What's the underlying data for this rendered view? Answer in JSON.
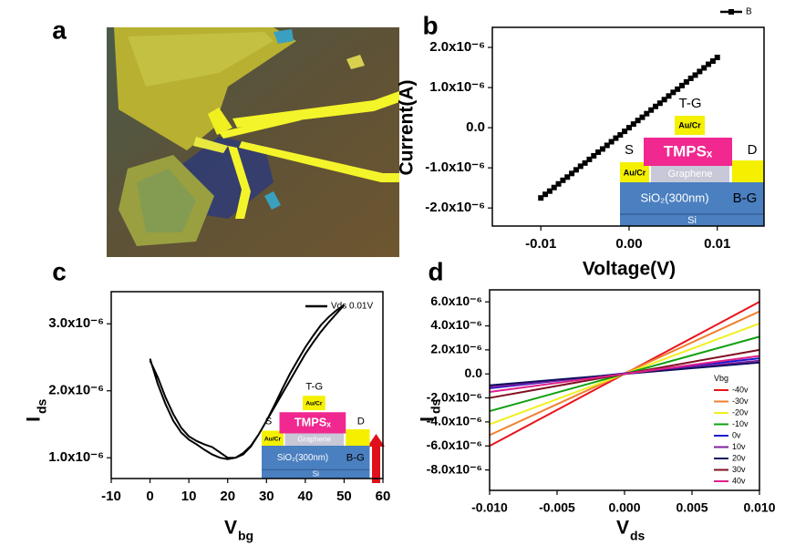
{
  "chart_data": [
    {
      "type": "image",
      "panel": "a"
    },
    {
      "type": "line",
      "panel": "b",
      "xlabel": "Voltage(V)",
      "ylabel": "Current(A)",
      "marker": "square",
      "legend": "top-outside",
      "x": [
        -0.01,
        -0.0095,
        -0.009,
        -0.0085,
        -0.008,
        -0.0075,
        -0.007,
        -0.0065,
        -0.006,
        -0.0055,
        -0.005,
        -0.0045,
        -0.004,
        -0.0035,
        -0.003,
        -0.0025,
        -0.002,
        -0.0015,
        -0.001,
        -0.0005,
        0,
        0.0005,
        0.001,
        0.0015,
        0.002,
        0.0025,
        0.003,
        0.0035,
        0.004,
        0.0045,
        0.005,
        0.0055,
        0.006,
        0.0065,
        0.007,
        0.0075,
        0.008,
        0.0085,
        0.009,
        0.0095,
        0.01
      ],
      "series": [
        {
          "name": "B",
          "color": "#000000",
          "values": [
            -1.75e-06,
            -1.66e-06,
            -1.58e-06,
            -1.49e-06,
            -1.4e-06,
            -1.31e-06,
            -1.23e-06,
            -1.14e-06,
            -1.05e-06,
            -9.6e-07,
            -8.8e-07,
            -7.9e-07,
            -7e-07,
            -6.1e-07,
            -5.3e-07,
            -4.4e-07,
            -3.5e-07,
            -2.6e-07,
            -1.8e-07,
            -9e-08,
            0,
            9e-08,
            1.8e-07,
            2.6e-07,
            3.5e-07,
            4.4e-07,
            5.3e-07,
            6.1e-07,
            7e-07,
            7.9e-07,
            8.8e-07,
            9.6e-07,
            1.05e-06,
            1.14e-06,
            1.23e-06,
            1.31e-06,
            1.4e-06,
            1.49e-06,
            1.58e-06,
            1.66e-06,
            1.75e-06
          ]
        }
      ],
      "xlim": [
        -0.0155,
        0.0153
      ],
      "ylim": [
        -2.45e-06,
        2.5e-06
      ],
      "xticks": [
        -0.01,
        {
          "value": 0,
          "label": "0.00"
        },
        0.01
      ],
      "yticks": [
        {
          "value": 2e-06,
          "label": "2.0x10⁻⁶"
        },
        {
          "value": 1e-06,
          "label": "1.0x10⁻⁶"
        },
        {
          "value": 0,
          "label": "0.0"
        },
        {
          "value": -1e-06,
          "label": "-1.0x10⁻⁶"
        },
        {
          "value": -2e-06,
          "label": "-2.0x10⁻⁶"
        }
      ],
      "inset": {
        "top_gate": "T-G",
        "gate_metal": "Au/Cr",
        "channel": "TMPSₓ",
        "source": "S",
        "drain": "D",
        "contact": "Au/Cr",
        "graphene": "Graphene",
        "oxide": "SiO₂(300nm)",
        "back_gate": "B-G",
        "substrate": "Si"
      }
    },
    {
      "type": "line",
      "panel": "c",
      "xlabel": "V",
      "xlabel_sub": "bg",
      "ylabel": "I",
      "ylabel_sub": "ds",
      "legend": "top-right",
      "x": [
        0,
        2,
        4,
        6,
        8,
        10,
        12,
        14,
        16,
        18,
        20,
        22,
        24,
        26,
        28,
        30,
        32,
        34,
        36,
        38,
        40,
        42,
        44,
        46,
        48,
        50,
        48,
        46,
        44,
        42,
        40,
        38,
        36,
        34,
        32,
        30,
        28,
        26,
        24,
        22,
        20,
        18,
        16,
        14,
        12,
        10,
        8,
        6,
        4,
        2,
        0
      ],
      "series": [
        {
          "name": "Vds 0.01V",
          "color": "#000000",
          "values": [
            2.48e-06,
            2.1e-06,
            1.8e-06,
            1.55e-06,
            1.38e-06,
            1.27e-06,
            1.2e-06,
            1.12e-06,
            1.05e-06,
            1e-06,
            9.8e-07,
            1e-06,
            1.07e-06,
            1.18e-06,
            1.35e-06,
            1.55e-06,
            1.75e-06,
            1.95e-06,
            2.15e-06,
            2.35e-06,
            2.55e-06,
            2.72e-06,
            2.88e-06,
            3.02e-06,
            3.15e-06,
            3.28e-06,
            3.2e-06,
            3.1e-06,
            2.98e-06,
            2.82e-06,
            2.65e-06,
            2.45e-06,
            2.25e-06,
            2.02e-06,
            1.78e-06,
            1.55e-06,
            1.35e-06,
            1.17e-06,
            1.05e-06,
            1e-06,
            1e-06,
            1.08e-06,
            1.16e-06,
            1.2e-06,
            1.25e-06,
            1.32e-06,
            1.45e-06,
            1.65e-06,
            1.9e-06,
            2.2e-06,
            2.45e-06
          ]
        }
      ],
      "xlim": [
        -10,
        60
      ],
      "ylim": [
        6.9e-07,
        3.48e-06
      ],
      "xticks": [
        -10,
        0,
        10,
        20,
        30,
        40,
        50,
        60
      ],
      "yticks": [
        {
          "value": 3e-06,
          "label": "3.0x10⁻⁶"
        },
        {
          "value": 2e-06,
          "label": "2.0x10⁻⁶"
        },
        {
          "value": 1e-06,
          "label": "1.0x10⁻⁶"
        }
      ],
      "inset": {
        "top_gate": "T-G",
        "gate_metal": "Au/Cr",
        "channel": "TMPSₓ",
        "source": "S",
        "drain": "D",
        "contact": "Au/Cr",
        "graphene": "Graphene",
        "oxide": "SiO₂(300nm)",
        "back_gate": "B-G",
        "substrate": "Si"
      }
    },
    {
      "type": "line",
      "panel": "d",
      "xlabel": "V",
      "xlabel_sub": "ds",
      "ylabel": "I",
      "ylabel_sub": "ds",
      "legend": "lower-right",
      "legend_title": "Vbg",
      "x": [
        -0.01,
        0.01
      ],
      "series": [
        {
          "name": "-40v",
          "color": "#e8141c",
          "values": [
            -6e-06,
            6e-06
          ]
        },
        {
          "name": "-30v",
          "color": "#f08030",
          "values": [
            -5.1e-06,
            5.2e-06
          ]
        },
        {
          "name": "-20v",
          "color": "#f0f020",
          "values": [
            -4.2e-06,
            4.2e-06
          ]
        },
        {
          "name": "-10v",
          "color": "#10a010",
          "values": [
            -3.1e-06,
            3.1e-06
          ]
        },
        {
          "name": "0v",
          "color": "#1a1ad0",
          "values": [
            -1.2e-06,
            1.3e-06
          ]
        },
        {
          "name": "10v",
          "color": "#8020a0",
          "values": [
            -1.1e-06,
            1.1e-06
          ]
        },
        {
          "name": "20v",
          "color": "#101060",
          "values": [
            -9.5e-07,
            9.5e-07
          ]
        },
        {
          "name": "30v",
          "color": "#801020",
          "values": [
            -2e-06,
            2e-06
          ]
        },
        {
          "name": "40v",
          "color": "#e0208a",
          "values": [
            -1.5e-06,
            1.5e-06
          ]
        }
      ],
      "xlim": [
        -0.01,
        0.01
      ],
      "ylim": [
        -9.7e-06,
        7e-06
      ],
      "xticks": [
        {
          "value": -0.01,
          "label": "-0.010"
        },
        -0.005,
        {
          "value": 0,
          "label": "0.000"
        },
        0.005,
        {
          "value": 0.01,
          "label": "0.010"
        }
      ],
      "yticks": [
        {
          "value": 6e-06,
          "label": "6.0x10⁻⁶"
        },
        {
          "value": 4e-06,
          "label": "4.0x10⁻⁶"
        },
        {
          "value": 2e-06,
          "label": "2.0x10⁻⁶"
        },
        {
          "value": 0,
          "label": "0.0"
        },
        {
          "value": -2e-06,
          "label": "-2.0x10⁻⁶"
        },
        {
          "value": -4e-06,
          "label": "-4.0x10⁻⁶"
        },
        {
          "value": -6e-06,
          "label": "-6.0x10⁻⁶"
        },
        {
          "value": -8e-06,
          "label": "-8.0x10⁻⁶"
        }
      ]
    }
  ]
}
